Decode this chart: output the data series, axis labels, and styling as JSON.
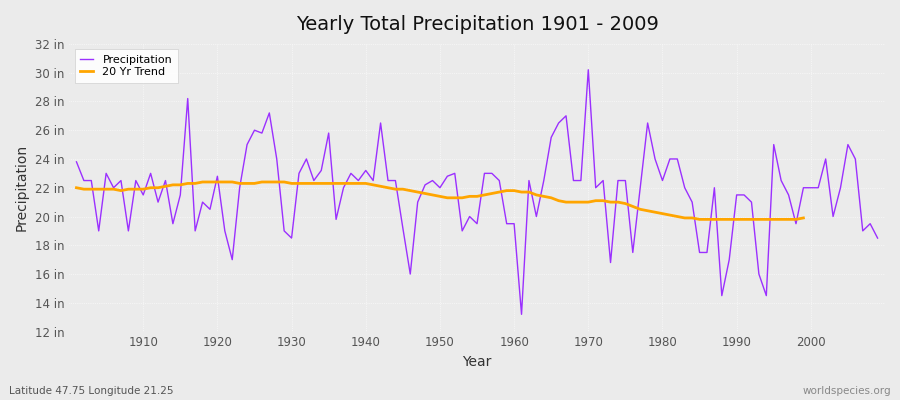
{
  "title": "Yearly Total Precipitation 1901 - 2009",
  "xlabel": "Year",
  "ylabel": "Precipitation",
  "bottom_left_label": "Latitude 47.75 Longitude 21.25",
  "bottom_right_label": "worldspecies.org",
  "years": [
    1901,
    1902,
    1903,
    1904,
    1905,
    1906,
    1907,
    1908,
    1909,
    1910,
    1911,
    1912,
    1913,
    1914,
    1915,
    1916,
    1917,
    1918,
    1919,
    1920,
    1921,
    1922,
    1923,
    1924,
    1925,
    1926,
    1927,
    1928,
    1929,
    1930,
    1931,
    1932,
    1933,
    1934,
    1935,
    1936,
    1937,
    1938,
    1939,
    1940,
    1941,
    1942,
    1943,
    1944,
    1945,
    1946,
    1947,
    1948,
    1949,
    1950,
    1951,
    1952,
    1953,
    1954,
    1955,
    1956,
    1957,
    1958,
    1959,
    1960,
    1961,
    1962,
    1963,
    1964,
    1965,
    1966,
    1967,
    1968,
    1969,
    1970,
    1971,
    1972,
    1973,
    1974,
    1975,
    1976,
    1977,
    1978,
    1979,
    1980,
    1981,
    1982,
    1983,
    1984,
    1985,
    1986,
    1987,
    1988,
    1989,
    1990,
    1991,
    1992,
    1993,
    1994,
    1995,
    1996,
    1997,
    1998,
    1999,
    2000,
    2001,
    2002,
    2003,
    2004,
    2005,
    2006,
    2007,
    2008,
    2009
  ],
  "precip": [
    23.8,
    22.5,
    22.5,
    19.0,
    23.0,
    22.0,
    22.5,
    19.0,
    22.5,
    21.5,
    23.0,
    21.0,
    22.5,
    19.5,
    21.5,
    28.2,
    19.0,
    21.0,
    20.5,
    22.8,
    19.0,
    17.0,
    22.0,
    25.0,
    26.0,
    25.8,
    27.2,
    24.0,
    19.0,
    18.5,
    23.0,
    24.0,
    22.5,
    23.2,
    25.8,
    19.8,
    22.0,
    23.0,
    22.5,
    23.2,
    22.5,
    26.5,
    22.5,
    22.5,
    19.2,
    16.0,
    21.0,
    22.2,
    22.5,
    22.0,
    22.8,
    23.0,
    19.0,
    20.0,
    19.5,
    23.0,
    23.0,
    22.5,
    19.5,
    19.5,
    13.2,
    22.5,
    20.0,
    22.5,
    25.5,
    26.5,
    27.0,
    22.5,
    22.5,
    30.2,
    22.0,
    22.5,
    16.8,
    22.5,
    22.5,
    17.5,
    22.0,
    26.5,
    24.0,
    22.5,
    24.0,
    24.0,
    22.0,
    21.0,
    17.5,
    17.5,
    22.0,
    14.5,
    17.0,
    21.5,
    21.5,
    21.0,
    16.0,
    14.5,
    25.0,
    22.5,
    21.5,
    19.5,
    22.0,
    22.0,
    22.0,
    24.0,
    20.0,
    22.0,
    25.0,
    24.0,
    19.0,
    19.5,
    18.5
  ],
  "trend": [
    22.0,
    21.9,
    21.9,
    21.9,
    21.9,
    21.9,
    21.8,
    21.9,
    21.9,
    21.9,
    22.0,
    22.0,
    22.1,
    22.2,
    22.2,
    22.3,
    22.3,
    22.4,
    22.4,
    22.4,
    22.4,
    22.4,
    22.3,
    22.3,
    22.3,
    22.4,
    22.4,
    22.4,
    22.4,
    22.3,
    22.3,
    22.3,
    22.3,
    22.3,
    22.3,
    22.3,
    22.3,
    22.3,
    22.3,
    22.3,
    22.2,
    22.1,
    22.0,
    21.9,
    21.9,
    21.8,
    21.7,
    21.6,
    21.5,
    21.4,
    21.3,
    21.3,
    21.3,
    21.4,
    21.4,
    21.5,
    21.6,
    21.7,
    21.8,
    21.8,
    21.7,
    21.7,
    21.5,
    21.4,
    21.3,
    21.1,
    21.0,
    21.0,
    21.0,
    21.0,
    21.1,
    21.1,
    21.0,
    21.0,
    20.9,
    20.7,
    20.5,
    20.4,
    20.3,
    20.2,
    20.1,
    20.0,
    19.9,
    19.9,
    19.8,
    19.8,
    19.8,
    19.8,
    19.8,
    19.8,
    19.8,
    19.8,
    19.8,
    19.8,
    19.8,
    19.8,
    19.8,
    19.8,
    19.9,
    null,
    null,
    null,
    null,
    null,
    null,
    null,
    null,
    null
  ],
  "precip_color": "#9B30FF",
  "trend_color": "#FFA500",
  "bg_color": "#EBEBEB",
  "plot_bg_color": "#EBEBEB",
  "grid_color": "#FFFFFF",
  "ylim": [
    12,
    32
  ],
  "yticks": [
    12,
    14,
    16,
    18,
    20,
    22,
    24,
    26,
    28,
    30,
    32
  ],
  "xlim": [
    1900,
    2010
  ],
  "xticks": [
    1910,
    1920,
    1930,
    1940,
    1950,
    1960,
    1970,
    1980,
    1990,
    2000
  ]
}
